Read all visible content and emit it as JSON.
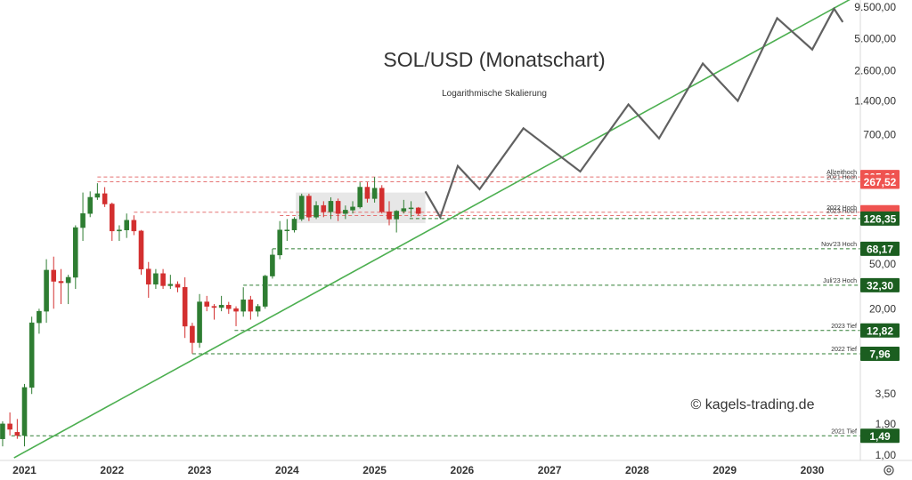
{
  "chart_data": {
    "type": "candlestick",
    "title": "SOL/USD (Monatschart)",
    "subtitle": "Logarithmische Skalierung",
    "watermark": "© kagels-trading.de",
    "y_scale": "log",
    "y_range": [
      0.9,
      11000
    ],
    "x_range": [
      2020.72,
      2030.55
    ],
    "grid": false,
    "colors": {
      "up": "#2e7d32",
      "down": "#d32f2f",
      "trendline": "#4caf50",
      "projection": "#616161",
      "support": "#2e7d32",
      "resistance": "#e57373"
    },
    "y_ticks": [
      "9.500,00",
      "5.000,00",
      "2.600,00",
      "1.400,00",
      "700,00",
      "50,00",
      "20,00",
      "3,50",
      "1,90",
      "1,00"
    ],
    "y_tick_values": [
      9500,
      5000,
      2600,
      1400,
      700,
      50,
      20,
      3.5,
      1.9,
      1.0
    ],
    "x_ticks": [
      "2021",
      "2022",
      "2023",
      "2024",
      "2025",
      "2026",
      "2027",
      "2028",
      "2029",
      "2030"
    ],
    "x_tick_values": [
      2021,
      2022,
      2023,
      2024,
      2025,
      2026,
      2027,
      2028,
      2029,
      2030
    ],
    "candles": [
      {
        "t": 2020.75,
        "o": 1.4,
        "h": 2.0,
        "l": 1.2,
        "c": 1.9
      },
      {
        "t": 2020.833,
        "o": 1.9,
        "h": 2.4,
        "l": 1.5,
        "c": 1.7
      },
      {
        "t": 2020.917,
        "o": 1.6,
        "h": 2.1,
        "l": 1.4,
        "c": 1.5
      },
      {
        "t": 2021.0,
        "o": 1.5,
        "h": 4.3,
        "l": 1.2,
        "c": 4.0
      },
      {
        "t": 2021.083,
        "o": 4.0,
        "h": 17.0,
        "l": 3.5,
        "c": 15.0
      },
      {
        "t": 2021.167,
        "o": 15.0,
        "h": 20.0,
        "l": 12.0,
        "c": 19.0
      },
      {
        "t": 2021.25,
        "o": 19.0,
        "h": 55.0,
        "l": 15.0,
        "c": 44.0
      },
      {
        "t": 2021.333,
        "o": 44.0,
        "h": 58.0,
        "l": 20.0,
        "c": 35.0
      },
      {
        "t": 2021.417,
        "o": 35.0,
        "h": 45.0,
        "l": 22.0,
        "c": 34.0
      },
      {
        "t": 2021.5,
        "o": 34.0,
        "h": 40.0,
        "l": 22.0,
        "c": 38.0
      },
      {
        "t": 2021.583,
        "o": 38.0,
        "h": 110.0,
        "l": 30.0,
        "c": 105.0
      },
      {
        "t": 2021.667,
        "o": 105.0,
        "h": 215.0,
        "l": 80.0,
        "c": 140.0
      },
      {
        "t": 2021.75,
        "o": 140.0,
        "h": 220.0,
        "l": 130.0,
        "c": 195.0
      },
      {
        "t": 2021.833,
        "o": 195.0,
        "h": 260.0,
        "l": 185.0,
        "c": 210.0
      },
      {
        "t": 2021.917,
        "o": 210.0,
        "h": 240.0,
        "l": 160.0,
        "c": 170.0
      },
      {
        "t": 2022.0,
        "o": 170.0,
        "h": 175.0,
        "l": 80.0,
        "c": 98.0
      },
      {
        "t": 2022.083,
        "o": 98.0,
        "h": 110.0,
        "l": 80.0,
        "c": 100.0
      },
      {
        "t": 2022.167,
        "o": 100.0,
        "h": 140.0,
        "l": 85.0,
        "c": 122.0
      },
      {
        "t": 2022.25,
        "o": 122.0,
        "h": 135.0,
        "l": 90.0,
        "c": 98.0
      },
      {
        "t": 2022.333,
        "o": 98.0,
        "h": 100.0,
        "l": 40.0,
        "c": 45.0
      },
      {
        "t": 2022.417,
        "o": 45.0,
        "h": 52.0,
        "l": 25.0,
        "c": 33.0
      },
      {
        "t": 2022.5,
        "o": 33.0,
        "h": 45.0,
        "l": 30.0,
        "c": 41.0
      },
      {
        "t": 2022.583,
        "o": 41.0,
        "h": 45.0,
        "l": 30.0,
        "c": 32.0
      },
      {
        "t": 2022.667,
        "o": 32.0,
        "h": 40.0,
        "l": 30.0,
        "c": 33.0
      },
      {
        "t": 2022.75,
        "o": 33.0,
        "h": 35.0,
        "l": 28.0,
        "c": 31.0
      },
      {
        "t": 2022.833,
        "o": 31.0,
        "h": 38.0,
        "l": 11.0,
        "c": 14.0
      },
      {
        "t": 2022.917,
        "o": 14.0,
        "h": 15.0,
        "l": 8.0,
        "c": 10.0
      },
      {
        "t": 2023.0,
        "o": 10.0,
        "h": 27.0,
        "l": 9.0,
        "c": 23.0
      },
      {
        "t": 2023.083,
        "o": 23.0,
        "h": 26.0,
        "l": 19.0,
        "c": 21.0
      },
      {
        "t": 2023.167,
        "o": 21.0,
        "h": 22.0,
        "l": 16.0,
        "c": 20.5
      },
      {
        "t": 2023.25,
        "o": 20.5,
        "h": 26.0,
        "l": 19.0,
        "c": 21.5
      },
      {
        "t": 2023.333,
        "o": 21.5,
        "h": 23.0,
        "l": 18.0,
        "c": 20.0
      },
      {
        "t": 2023.417,
        "o": 20.0,
        "h": 21.0,
        "l": 14.0,
        "c": 19.0
      },
      {
        "t": 2023.5,
        "o": 19.0,
        "h": 31.0,
        "l": 17.0,
        "c": 24.0
      },
      {
        "t": 2023.583,
        "o": 24.0,
        "h": 26.0,
        "l": 16.0,
        "c": 19.0
      },
      {
        "t": 2023.667,
        "o": 19.0,
        "h": 22.0,
        "l": 17.0,
        "c": 21.0
      },
      {
        "t": 2023.75,
        "o": 21.0,
        "h": 40.0,
        "l": 20.0,
        "c": 39.0
      },
      {
        "t": 2023.833,
        "o": 39.0,
        "h": 68.0,
        "l": 37.0,
        "c": 60.0
      },
      {
        "t": 2023.917,
        "o": 60.0,
        "h": 120.0,
        "l": 55.0,
        "c": 100.0
      },
      {
        "t": 2024.0,
        "o": 100.0,
        "h": 125.0,
        "l": 80.0,
        "c": 100.0
      },
      {
        "t": 2024.083,
        "o": 100.0,
        "h": 130.0,
        "l": 95.0,
        "c": 125.0
      },
      {
        "t": 2024.167,
        "o": 125.0,
        "h": 210.0,
        "l": 120.0,
        "c": 200.0
      },
      {
        "t": 2024.25,
        "o": 200.0,
        "h": 210.0,
        "l": 120.0,
        "c": 130.0
      },
      {
        "t": 2024.333,
        "o": 130.0,
        "h": 180.0,
        "l": 125.0,
        "c": 165.0
      },
      {
        "t": 2024.417,
        "o": 165.0,
        "h": 180.0,
        "l": 130.0,
        "c": 145.0
      },
      {
        "t": 2024.5,
        "o": 145.0,
        "h": 195.0,
        "l": 125.0,
        "c": 180.0
      },
      {
        "t": 2024.583,
        "o": 180.0,
        "h": 190.0,
        "l": 120.0,
        "c": 140.0
      },
      {
        "t": 2024.667,
        "o": 140.0,
        "h": 165.0,
        "l": 125.0,
        "c": 150.0
      },
      {
        "t": 2024.75,
        "o": 150.0,
        "h": 180.0,
        "l": 140.0,
        "c": 160.0
      },
      {
        "t": 2024.833,
        "o": 160.0,
        "h": 265.0,
        "l": 155.0,
        "c": 240.0
      },
      {
        "t": 2024.917,
        "o": 240.0,
        "h": 265.0,
        "l": 175.0,
        "c": 190.0
      },
      {
        "t": 2025.0,
        "o": 190.0,
        "h": 295.0,
        "l": 175.0,
        "c": 235.0
      },
      {
        "t": 2025.083,
        "o": 235.0,
        "h": 250.0,
        "l": 140.0,
        "c": 145.0
      },
      {
        "t": 2025.167,
        "o": 145.0,
        "h": 180.0,
        "l": 110.0,
        "c": 125.0
      },
      {
        "t": 2025.25,
        "o": 125.0,
        "h": 150.0,
        "l": 95.0,
        "c": 147.0
      },
      {
        "t": 2025.333,
        "o": 147.0,
        "h": 185.0,
        "l": 140.0,
        "c": 155.0
      },
      {
        "t": 2025.417,
        "o": 155.0,
        "h": 180.0,
        "l": 130.0,
        "c": 157.0
      },
      {
        "t": 2025.5,
        "o": 157.0,
        "h": 160.0,
        "l": 135.0,
        "c": 140.0
      }
    ],
    "consolidation_box": {
      "x0": 2024.1,
      "x1": 2025.58,
      "y0": 115,
      "y1": 215
    },
    "trendline": [
      {
        "x": 2020.88,
        "y": 0.95
      },
      {
        "x": 2030.55,
        "y": 12500
      }
    ],
    "projection": [
      {
        "x": 2025.58,
        "y": 220
      },
      {
        "x": 2025.75,
        "y": 130
      },
      {
        "x": 2025.95,
        "y": 370
      },
      {
        "x": 2026.2,
        "y": 230
      },
      {
        "x": 2026.7,
        "y": 800
      },
      {
        "x": 2027.35,
        "y": 330
      },
      {
        "x": 2027.9,
        "y": 1300
      },
      {
        "x": 2028.25,
        "y": 650
      },
      {
        "x": 2028.75,
        "y": 3000
      },
      {
        "x": 2029.15,
        "y": 1400
      },
      {
        "x": 2029.6,
        "y": 7600
      },
      {
        "x": 2030.0,
        "y": 4000
      },
      {
        "x": 2030.25,
        "y": 9200
      },
      {
        "x": 2030.35,
        "y": 7000
      }
    ],
    "levels": [
      {
        "name": "Allzeithoch",
        "value": 295.31,
        "label": "295,31",
        "kind": "resistance",
        "x_start": 2021.833
      },
      {
        "name": "2021 Hoch",
        "value": 267.52,
        "label": "267,52",
        "kind": "resistance",
        "x_start": 2021.833
      },
      {
        "name": "2022 Hoch",
        "value": 143.71,
        "label": "143,71",
        "kind": "resistance",
        "x_start": 2022.25
      },
      {
        "name": "2023 Hoch",
        "value": 134.41,
        "label": "134,41",
        "kind": "resistance",
        "x_start": 2023.917
      },
      {
        "name": "",
        "value": 126.35,
        "label": "126,35",
        "kind": "support",
        "x_start": 2025.4
      },
      {
        "name": "Nov'23 Hoch",
        "value": 68.17,
        "label": "68,17",
        "kind": "support",
        "x_start": 2023.833
      },
      {
        "name": "Juli'23 Hoch",
        "value": 32.3,
        "label": "32,30",
        "kind": "support",
        "x_start": 2023.5
      },
      {
        "name": "2023 Tief",
        "value": 12.82,
        "label": "12,82",
        "kind": "support",
        "x_start": 2023.4
      },
      {
        "name": "2022 Tief",
        "value": 7.96,
        "label": "7,96",
        "kind": "support",
        "x_start": 2022.917
      },
      {
        "name": "2021 Tief",
        "value": 1.49,
        "label": "1,49",
        "kind": "support",
        "x_start": 2020.85
      }
    ]
  }
}
